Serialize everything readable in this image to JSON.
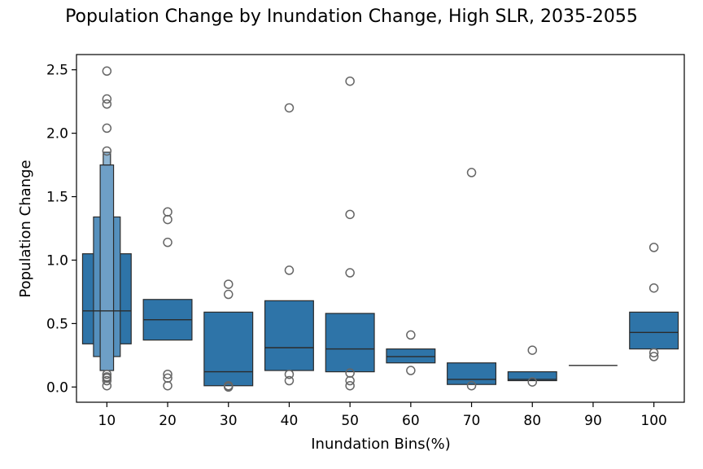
{
  "chart_data": {
    "type": "boxen",
    "title": "Population Change by Inundation Change, High SLR, 2035-2055",
    "xlabel": "Inundation Bins(%)",
    "ylabel": "Population Change",
    "ylim": [
      -0.12,
      2.62
    ],
    "yticks": [
      0.0,
      0.5,
      1.0,
      1.5,
      2.0,
      2.5
    ],
    "ytick_labels": [
      "0.0",
      "0.5",
      "1.0",
      "1.5",
      "2.0",
      "2.5"
    ],
    "categories": [
      "10",
      "20",
      "30",
      "40",
      "50",
      "60",
      "70",
      "80",
      "90",
      "100"
    ],
    "grid": false,
    "color": "#2e74a8",
    "boxes": [
      {
        "category": "10",
        "median": 0.6,
        "levels": [
          [
            0.34,
            1.05
          ],
          [
            0.24,
            1.34
          ],
          [
            0.13,
            1.75
          ],
          [
            1.75,
            1.85
          ]
        ],
        "outliers": [
          2.49,
          2.27,
          2.23,
          2.04,
          1.86,
          0.1,
          0.08,
          0.07,
          0.05,
          0.01
        ]
      },
      {
        "category": "20",
        "median": 0.53,
        "levels": [
          [
            0.37,
            0.69
          ]
        ],
        "outliers": [
          1.38,
          1.32,
          1.14,
          0.1,
          0.07,
          0.01
        ]
      },
      {
        "category": "30",
        "median": 0.12,
        "levels": [
          [
            0.01,
            0.59
          ]
        ],
        "outliers": [
          0.81,
          0.73,
          0.01,
          0.0
        ]
      },
      {
        "category": "40",
        "median": 0.31,
        "levels": [
          [
            0.13,
            0.68
          ]
        ],
        "outliers": [
          2.2,
          0.92,
          0.1,
          0.05
        ]
      },
      {
        "category": "50",
        "median": 0.3,
        "levels": [
          [
            0.12,
            0.58
          ]
        ],
        "outliers": [
          2.41,
          1.36,
          0.9,
          0.11,
          0.05,
          0.01
        ]
      },
      {
        "category": "60",
        "median": 0.24,
        "levels": [
          [
            0.19,
            0.3
          ]
        ],
        "outliers": [
          0.41,
          0.13
        ]
      },
      {
        "category": "70",
        "median": 0.06,
        "levels": [
          [
            0.02,
            0.19
          ]
        ],
        "outliers": [
          1.69,
          0.01
        ]
      },
      {
        "category": "80",
        "median": 0.06,
        "levels": [
          [
            0.05,
            0.12
          ]
        ],
        "outliers": [
          0.29,
          0.04
        ]
      },
      {
        "category": "90",
        "median": 0.17,
        "levels": [],
        "outliers": []
      },
      {
        "category": "100",
        "median": 0.43,
        "levels": [
          [
            0.3,
            0.59
          ]
        ],
        "outliers": [
          1.1,
          0.78,
          0.27,
          0.24
        ]
      }
    ]
  }
}
